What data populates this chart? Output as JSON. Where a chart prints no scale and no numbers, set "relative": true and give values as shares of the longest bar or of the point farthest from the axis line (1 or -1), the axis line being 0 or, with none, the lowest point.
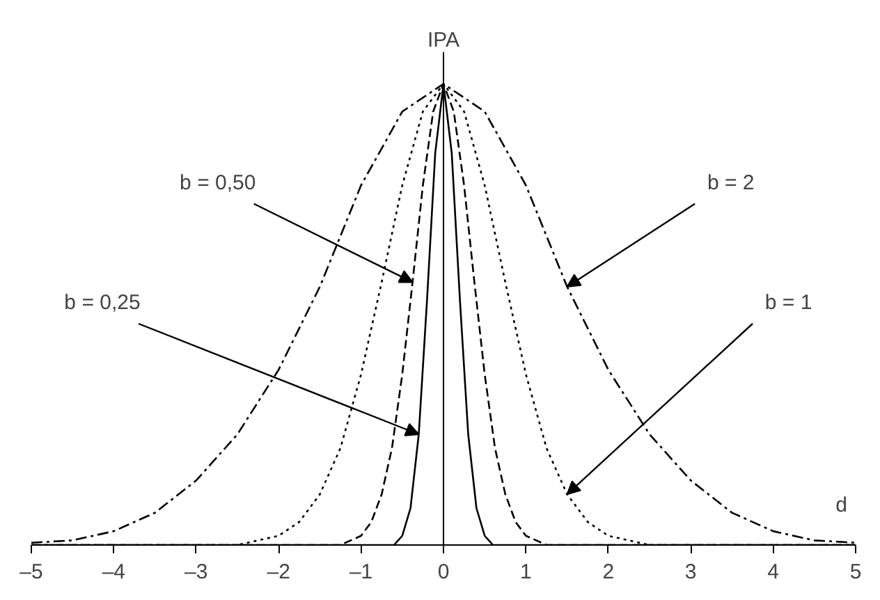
{
  "chart_data": {
    "type": "line",
    "xlabel": "d",
    "ylabel": "IPA",
    "relative": true,
    "xlim": [
      -5,
      5
    ],
    "xticks": [
      {
        "value": -5,
        "label": "–5"
      },
      {
        "value": -4,
        "label": "–4"
      },
      {
        "value": -3,
        "label": "–3"
      },
      {
        "value": -2,
        "label": "–2"
      },
      {
        "value": -1,
        "label": "–1"
      },
      0,
      1,
      2,
      3,
      4,
      5
    ],
    "annotations": [
      {
        "text": "b = 0,25",
        "x": -0.3,
        "y": 0.24
      },
      {
        "text": "b = 0,50",
        "x": -0.375,
        "y": 0.57
      },
      {
        "text": "b = 1",
        "x": 1.5,
        "y": 0.11
      },
      {
        "text": "b = 2",
        "x": 1.5,
        "y": 0.56
      }
    ],
    "series": [
      {
        "color": "#000000",
        "line_style": "solid",
        "x": [
          -5,
          -0.6,
          -0.5,
          -0.4,
          -0.3,
          -0.2,
          -0.1,
          0,
          0.1,
          0.2,
          0.3,
          0.4,
          0.5,
          0.6,
          5
        ],
        "values": [
          0,
          0,
          0.02,
          0.08,
          0.24,
          0.53,
          0.85,
          1,
          0.85,
          0.53,
          0.24,
          0.08,
          0.02,
          0,
          0
        ]
      },
      {
        "color": "#000000",
        "line_style": "dashed",
        "x": [
          -5,
          -1.25,
          -1,
          -0.875,
          -0.75,
          -0.625,
          -0.5,
          -0.375,
          -0.25,
          -0.125,
          0,
          0.125,
          0.25,
          0.375,
          0.5,
          0.625,
          0.75,
          0.875,
          1,
          1.25,
          5
        ],
        "values": [
          0,
          0,
          0.02,
          0.05,
          0.11,
          0.21,
          0.37,
          0.57,
          0.78,
          0.94,
          1,
          0.94,
          0.78,
          0.57,
          0.37,
          0.21,
          0.11,
          0.05,
          0.02,
          0,
          0
        ]
      },
      {
        "color": "#000000",
        "line_style": "dotted",
        "x": [
          -5,
          -2.5,
          -2.25,
          -2,
          -1.75,
          -1.5,
          -1.25,
          -1,
          -0.75,
          -0.5,
          -0.25,
          0,
          0.25,
          0.5,
          0.75,
          1,
          1.25,
          1.5,
          1.75,
          2,
          2.25,
          2.5,
          5
        ],
        "values": [
          0,
          0,
          0.01,
          0.02,
          0.05,
          0.11,
          0.21,
          0.37,
          0.57,
          0.78,
          0.94,
          1,
          0.94,
          0.78,
          0.57,
          0.37,
          0.21,
          0.11,
          0.05,
          0.02,
          0.01,
          0,
          0
        ]
      },
      {
        "color": "#000000",
        "line_style": "dashdot",
        "x": [
          -5,
          -4.5,
          -4,
          -3.5,
          -3,
          -2.5,
          -2,
          -1.5,
          -1,
          -0.5,
          0,
          0.5,
          1,
          1.5,
          2,
          2.5,
          3,
          3.5,
          4,
          4.5,
          5
        ],
        "values": [
          0.005,
          0.01,
          0.03,
          0.07,
          0.14,
          0.24,
          0.38,
          0.56,
          0.78,
          0.94,
          1,
          0.94,
          0.78,
          0.56,
          0.38,
          0.24,
          0.14,
          0.07,
          0.03,
          0.01,
          0.005
        ]
      }
    ]
  }
}
